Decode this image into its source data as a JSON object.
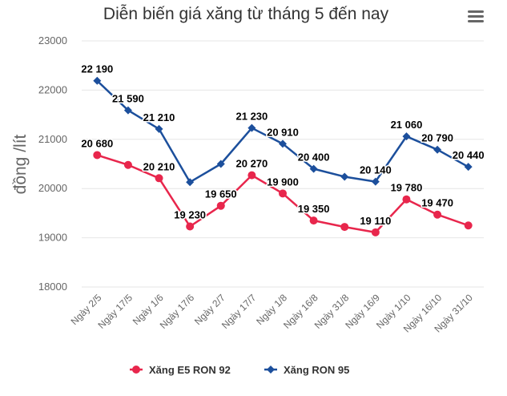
{
  "chart_data": {
    "type": "line",
    "title": "Diễn biến giá xăng từ tháng 5 đến nay",
    "ylabel": "đồng /lít",
    "xlabel": "",
    "ylim": [
      18000,
      23000
    ],
    "yticks": [
      "18000",
      "19000",
      "20000",
      "21000",
      "22000",
      "23000"
    ],
    "grid": true,
    "legend_position": "bottom",
    "categories": [
      "Ngày 2/5",
      "Ngày 17/5",
      "Ngày 1/6",
      "Ngày 17/6",
      "Ngày 2/7",
      "Ngày 17/7",
      "Ngày 1/8",
      "Ngày 16/8",
      "Ngày 31/8",
      "Ngày 16/9",
      "Ngày 1/10",
      "Ngày 16/10",
      "Ngày 31/10"
    ],
    "series": [
      {
        "name": "Xăng E5 RON 92",
        "color": "#e8264c",
        "marker": "circle",
        "values": [
          20680,
          20480,
          20210,
          19230,
          19650,
          20270,
          19900,
          19350,
          19220,
          19110,
          19780,
          19470,
          19250
        ],
        "labels": [
          "20 680",
          "",
          "20 210",
          "19 230",
          "19 650",
          "20 270",
          "19 900",
          "19 350",
          "",
          "19 110",
          "19 780",
          "19 470",
          ""
        ]
      },
      {
        "name": "Xăng RON 95",
        "color": "#1c4f9c",
        "marker": "diamond",
        "values": [
          22190,
          21590,
          21210,
          20130,
          20500,
          21230,
          20910,
          20400,
          20240,
          20140,
          21060,
          20790,
          20440
        ],
        "labels": [
          "22 190",
          "21 590",
          "21 210",
          "",
          "",
          "21 230",
          "20 910",
          "20 400",
          "",
          "20 140",
          "21 060",
          "20 790",
          "20 440"
        ]
      }
    ]
  },
  "menu": {
    "icon": "hamburger-menu-icon"
  }
}
